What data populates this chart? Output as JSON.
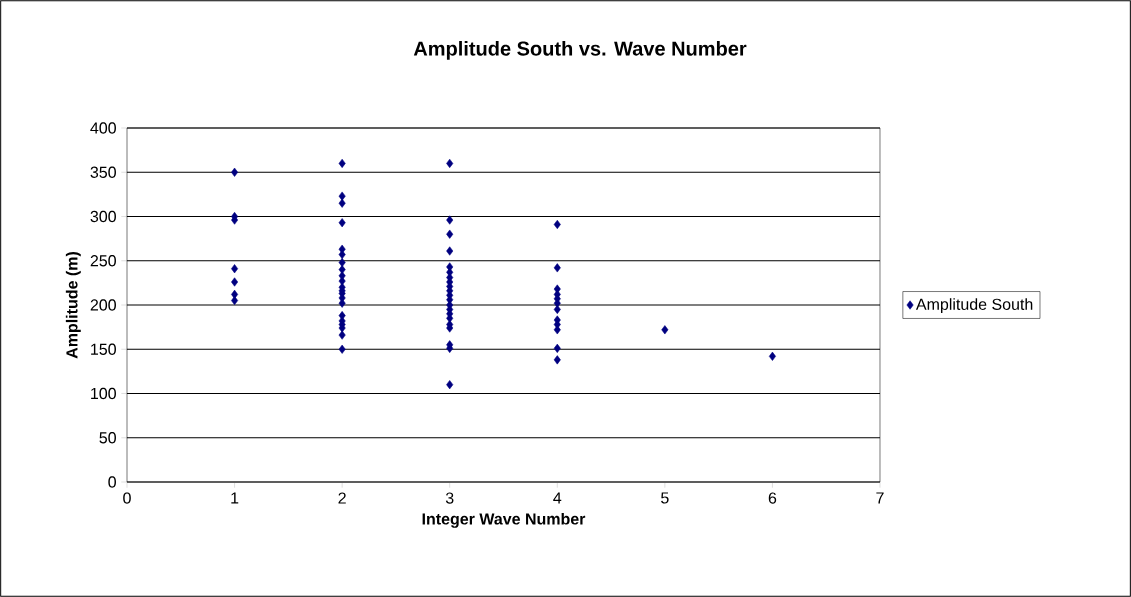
{
  "chart_data": {
    "type": "scatter",
    "title": "Amplitude South vs. Wave Number",
    "xlabel": "Integer Wave Number",
    "ylabel": "Amplitude (m)",
    "xlim": [
      0,
      7
    ],
    "ylim": [
      0,
      400
    ],
    "xticks": [
      0,
      1,
      2,
      3,
      4,
      5,
      6,
      7
    ],
    "yticks": [
      0,
      50,
      100,
      150,
      200,
      250,
      300,
      350,
      400
    ],
    "grid": "y",
    "legend": "right",
    "marker": "diamond",
    "series": [
      {
        "name": "Amplitude South",
        "color": "#000080",
        "x": [
          1,
          1,
          1,
          1,
          1,
          1,
          1,
          2,
          2,
          2,
          2,
          2,
          2,
          2,
          2,
          2,
          2,
          2,
          2,
          2,
          2,
          2,
          2,
          2,
          2,
          2,
          2,
          2,
          3,
          3,
          3,
          3,
          3,
          3,
          3,
          3,
          3,
          3,
          3,
          3,
          3,
          3,
          3,
          3,
          3,
          3,
          3,
          3,
          3,
          4,
          4,
          4,
          4,
          4,
          4,
          4,
          4,
          4,
          4,
          4,
          4,
          5,
          6
        ],
        "values": [
          350,
          300,
          296,
          241,
          226,
          212,
          205,
          360,
          323,
          315,
          293,
          263,
          257,
          248,
          240,
          233,
          227,
          220,
          216,
          213,
          208,
          202,
          188,
          182,
          178,
          174,
          166,
          150,
          360,
          296,
          280,
          261,
          243,
          237,
          231,
          226,
          221,
          216,
          211,
          206,
          200,
          195,
          190,
          185,
          178,
          174,
          155,
          151,
          110,
          291,
          242,
          218,
          212,
          207,
          202,
          195,
          183,
          178,
          172,
          151,
          138,
          172,
          142
        ]
      }
    ]
  }
}
